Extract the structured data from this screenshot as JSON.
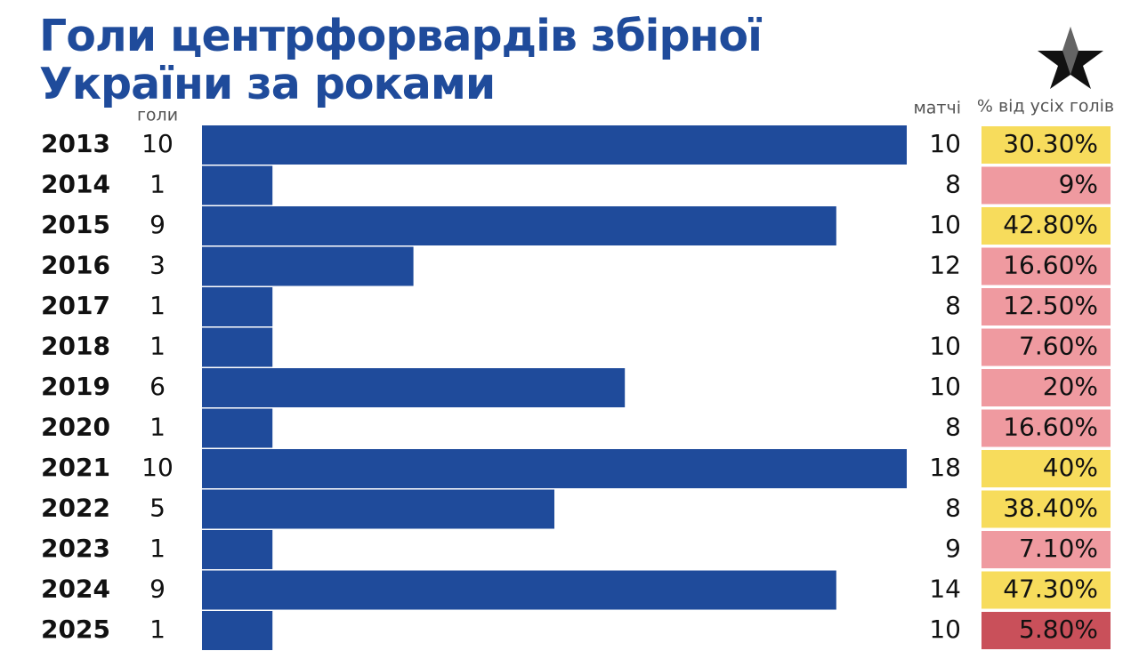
{
  "chart_data": {
    "type": "bar",
    "title": "Голи центрфорвардів збірної України за роками",
    "categories": [
      "2013",
      "2014",
      "2015",
      "2016",
      "2017",
      "2018",
      "2019",
      "2020",
      "2021",
      "2022",
      "2023",
      "2024",
      "2025"
    ],
    "series": [
      {
        "name": "голи",
        "color": "#1f4b9b",
        "values": [
          10,
          1,
          9,
          3,
          1,
          1,
          6,
          1,
          10,
          5,
          1,
          9,
          1
        ]
      }
    ],
    "matches": {
      "name": "матчі",
      "values": [
        10,
        8,
        10,
        12,
        8,
        10,
        10,
        8,
        18,
        8,
        9,
        14,
        10
      ]
    },
    "share": {
      "name": "% від усіх голів",
      "values": [
        30.3,
        9,
        42.8,
        16.6,
        12.5,
        7.6,
        20,
        16.6,
        40,
        38.4,
        7.1,
        47.3,
        5.8
      ],
      "value_labels": [
        "30.30%",
        "9%",
        "42.80%",
        "16.60%",
        "12.50%",
        "7.60%",
        "20%",
        "16.60%",
        "40%",
        "38.40%",
        "7.10%",
        "47.30%",
        "5.80%"
      ],
      "colors": [
        "#f7dc5c",
        "#ef9aa0",
        "#f7dc5c",
        "#ef9aa0",
        "#ef9aa0",
        "#ef9aa0",
        "#ef9aa0",
        "#ef9aa0",
        "#f7dc5c",
        "#f7dc5c",
        "#ef9aa0",
        "#f7dc5c",
        "#c9505a"
      ]
    }
  }
}
